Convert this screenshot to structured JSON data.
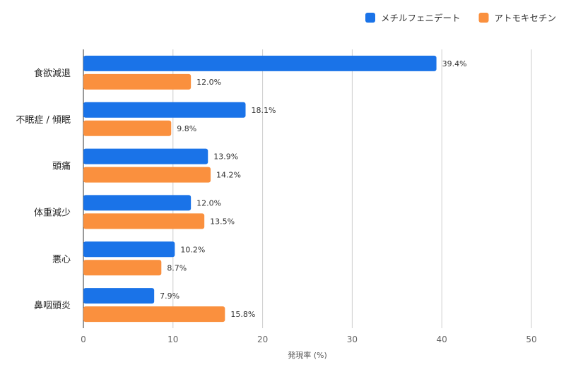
{
  "chart_data": {
    "type": "bar",
    "orientation": "horizontal",
    "categories": [
      "食欲減退",
      "不眠症 / 傾眠",
      "頭痛",
      "体重減少",
      "悪心",
      "鼻咽頭炎"
    ],
    "series": [
      {
        "name": "メチルフェニデート",
        "color": "#1a73e8",
        "values": [
          39.4,
          18.1,
          13.9,
          12.0,
          10.2,
          7.9
        ],
        "labels": [
          "39.4%",
          "18.1%",
          "13.9%",
          "12.0%",
          "10.2%",
          "7.9%"
        ]
      },
      {
        "name": "アトモキセチン",
        "color": "#fa903e",
        "values": [
          12.0,
          9.8,
          14.2,
          13.5,
          8.7,
          15.8
        ],
        "labels": [
          "12.0%",
          "9.8%",
          "14.2%",
          "13.5%",
          "8.7%",
          "15.8%"
        ]
      }
    ],
    "xlabel": "発現率 (%)",
    "ylabel": "",
    "xlim": [
      0,
      50
    ],
    "xticks": [
      0,
      10,
      20,
      30,
      40,
      50
    ],
    "xtick_labels": [
      "0",
      "10",
      "20",
      "30",
      "40",
      "50"
    ],
    "grid": true,
    "legend_position": "top-right"
  }
}
